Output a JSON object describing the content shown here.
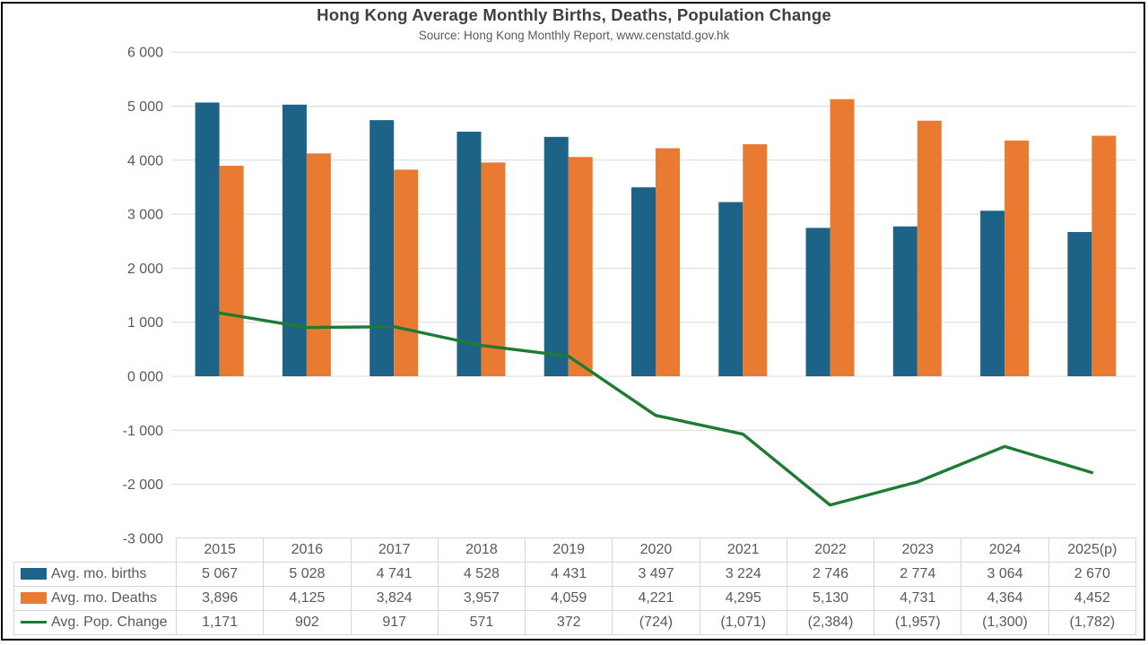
{
  "header": {
    "title": "Hong Kong Average Monthly Births, Deaths, Population Change",
    "subtitle": "Source: Hong Kong Monthly Report, www.censtatd.gov.hk"
  },
  "colors": {
    "births_bar": "#1D6287",
    "deaths_bar": "#E97A32",
    "pop_line": "#1E7B33",
    "gridline": "#D9D9D9",
    "table_border": "#D6D6D6",
    "text": "#595959",
    "title_text": "#3F3F3F",
    "frame_border": "#000000"
  },
  "chart_data": {
    "type": "bar+line",
    "title": "Hong Kong Average Monthly Births, Deaths, Population Change",
    "subtitle": "Source: Hong Kong Monthly Report, www.censtatd.gov.hk",
    "categories": [
      "2015",
      "2016",
      "2017",
      "2018",
      "2019",
      "2020",
      "2021",
      "2022",
      "2023",
      "2024",
      "2025(p)"
    ],
    "series": [
      {
        "name": "Avg. mo. births",
        "type": "bar",
        "color": "#1D6287",
        "values": [
          5067,
          5028,
          4741,
          4528,
          4431,
          3497,
          3224,
          2746,
          2774,
          3064,
          2670
        ],
        "display": [
          "5 067",
          "5 028",
          "4 741",
          "4 528",
          "4 431",
          "3 497",
          "3 224",
          "2 746",
          "2 774",
          "3 064",
          "2 670"
        ]
      },
      {
        "name": "Avg. mo. Deaths",
        "type": "bar",
        "color": "#E97A32",
        "values": [
          3896,
          4125,
          3824,
          3957,
          4059,
          4221,
          4295,
          5130,
          4731,
          4364,
          4452
        ],
        "display": [
          "3,896",
          "4,125",
          "3,824",
          "3,957",
          "4,059",
          "4,221",
          "4,295",
          "5,130",
          "4,731",
          "4,364",
          "4,452"
        ]
      },
      {
        "name": "Avg. Pop. Change",
        "type": "line",
        "color": "#1E7B33",
        "values": [
          1171,
          902,
          917,
          571,
          372,
          -724,
          -1071,
          -2384,
          -1957,
          -1300,
          -1782
        ],
        "display": [
          "1,171",
          "902",
          "917",
          "571",
          "372",
          "(724)",
          "(1,071)",
          "(2,384)",
          "(1,957)",
          "(1,300)",
          "(1,782)"
        ]
      }
    ],
    "y_axis": {
      "min": -3000,
      "max": 6000,
      "step": 1000,
      "tick_labels": [
        "6 000",
        "5 000",
        "4 000",
        "3 000",
        "2 000",
        "1 000",
        "0 000",
        "-1 000",
        "-2 000",
        "-3 000"
      ]
    },
    "grid": true,
    "legend_position": "table-left"
  }
}
